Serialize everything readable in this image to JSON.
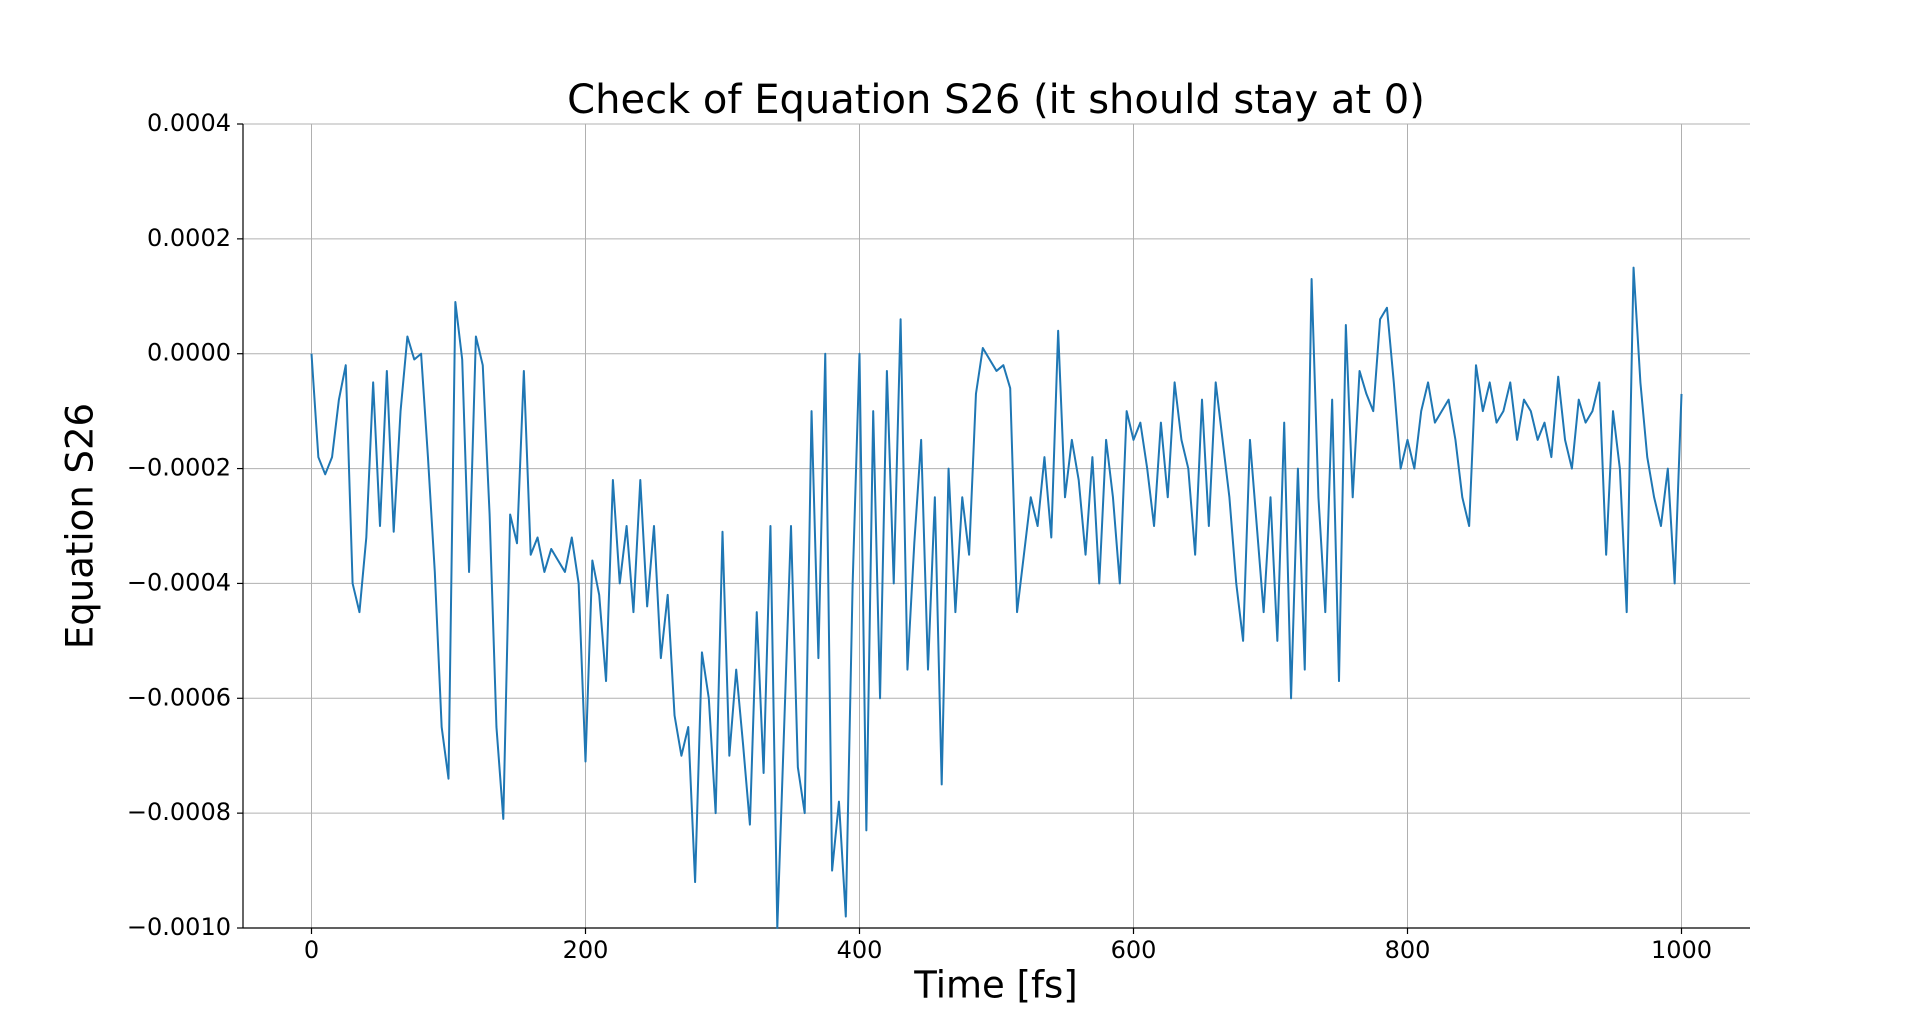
{
  "chart_data": {
    "type": "line",
    "title": "Check of Equation S26 (it should stay at 0)",
    "xlabel": "Time [fs]",
    "ylabel": "Equation S26",
    "color": "#1f77b4",
    "grid": true,
    "xlim": [
      -50,
      1050
    ],
    "ylim": [
      -0.001,
      0.0004
    ],
    "xticks": [
      0,
      200,
      400,
      600,
      800,
      1000
    ],
    "yticks": [
      {
        "value": -0.001,
        "label": "−0.0010"
      },
      {
        "value": -0.0008,
        "label": "−0.0008"
      },
      {
        "value": -0.0006,
        "label": "−0.0006"
      },
      {
        "value": -0.0004,
        "label": "−0.0004"
      },
      {
        "value": -0.0002,
        "label": "−0.0002"
      },
      {
        "value": 0,
        "label": "0.0000"
      },
      0.0002,
      0.0004
    ],
    "x": [
      0,
      5,
      10,
      15,
      20,
      25,
      30,
      35,
      40,
      45,
      50,
      55,
      60,
      65,
      70,
      75,
      80,
      85,
      90,
      95,
      100,
      105,
      110,
      115,
      120,
      125,
      130,
      135,
      140,
      145,
      150,
      155,
      160,
      165,
      170,
      175,
      180,
      185,
      190,
      195,
      200,
      205,
      210,
      215,
      220,
      225,
      230,
      235,
      240,
      245,
      250,
      255,
      260,
      265,
      270,
      275,
      280,
      285,
      290,
      295,
      300,
      305,
      310,
      315,
      320,
      325,
      330,
      335,
      340,
      345,
      350,
      355,
      360,
      365,
      370,
      375,
      380,
      385,
      390,
      395,
      400,
      405,
      410,
      415,
      420,
      425,
      430,
      435,
      440,
      445,
      450,
      455,
      460,
      465,
      470,
      475,
      480,
      485,
      490,
      495,
      500,
      505,
      510,
      515,
      520,
      525,
      530,
      535,
      540,
      545,
      550,
      555,
      560,
      565,
      570,
      575,
      580,
      585,
      590,
      595,
      600,
      605,
      610,
      615,
      620,
      625,
      630,
      635,
      640,
      645,
      650,
      655,
      660,
      665,
      670,
      675,
      680,
      685,
      690,
      695,
      700,
      705,
      710,
      715,
      720,
      725,
      730,
      735,
      740,
      745,
      750,
      755,
      760,
      765,
      770,
      775,
      780,
      785,
      790,
      795,
      800,
      805,
      810,
      815,
      820,
      825,
      830,
      835,
      840,
      845,
      850,
      855,
      860,
      865,
      870,
      875,
      880,
      885,
      890,
      895,
      900,
      905,
      910,
      915,
      920,
      925,
      930,
      935,
      940,
      945,
      950,
      955,
      960,
      965,
      970,
      975,
      980,
      985,
      990,
      995,
      1000
    ],
    "values": [
      0,
      -0.00018,
      -0.00021,
      -0.00018,
      -8e-05,
      -2e-05,
      -0.0004,
      -0.00045,
      -0.00032,
      -5e-05,
      -0.0003,
      -3e-05,
      -0.00031,
      -0.0001,
      3e-05,
      -1e-05,
      0,
      -0.00018,
      -0.00038,
      -0.00065,
      -0.00074,
      9e-05,
      -1e-05,
      -0.00038,
      3e-05,
      -2e-05,
      -0.00028,
      -0.00065,
      -0.00081,
      -0.00028,
      -0.00033,
      -3e-05,
      -0.00035,
      -0.00032,
      -0.00038,
      -0.00034,
      -0.00036,
      -0.00038,
      -0.00032,
      -0.0004,
      -0.00071,
      -0.00036,
      -0.00042,
      -0.00057,
      -0.00022,
      -0.0004,
      -0.0003,
      -0.00045,
      -0.00022,
      -0.00044,
      -0.0003,
      -0.00053,
      -0.00042,
      -0.00063,
      -0.0007,
      -0.00065,
      -0.00092,
      -0.00052,
      -0.0006,
      -0.0008,
      -0.00031,
      -0.0007,
      -0.00055,
      -0.00068,
      -0.00082,
      -0.00045,
      -0.00073,
      -0.0003,
      -0.001,
      -0.00065,
      -0.0003,
      -0.00072,
      -0.0008,
      -0.0001,
      -0.00053,
      0,
      -0.0009,
      -0.00078,
      -0.00098,
      -0.0004,
      0,
      -0.00083,
      -0.0001,
      -0.0006,
      -3e-05,
      -0.0004,
      6e-05,
      -0.00055,
      -0.00033,
      -0.00015,
      -0.00055,
      -0.00025,
      -0.00075,
      -0.0002,
      -0.00045,
      -0.00025,
      -0.00035,
      -7e-05,
      1e-05,
      -1e-05,
      -3e-05,
      -2e-05,
      -6e-05,
      -0.00045,
      -0.00035,
      -0.00025,
      -0.0003,
      -0.00018,
      -0.00032,
      4e-05,
      -0.00025,
      -0.00015,
      -0.00022,
      -0.00035,
      -0.00018,
      -0.0004,
      -0.00015,
      -0.00025,
      -0.0004,
      -0.0001,
      -0.00015,
      -0.00012,
      -0.0002,
      -0.0003,
      -0.00012,
      -0.00025,
      -5e-05,
      -0.00015,
      -0.0002,
      -0.00035,
      -8e-05,
      -0.0003,
      -5e-05,
      -0.00015,
      -0.00025,
      -0.0004,
      -0.0005,
      -0.00015,
      -0.0003,
      -0.00045,
      -0.00025,
      -0.0005,
      -0.00012,
      -0.0006,
      -0.0002,
      -0.00055,
      0.00013,
      -0.00025,
      -0.00045,
      -8e-05,
      -0.00057,
      5e-05,
      -0.00025,
      -3e-05,
      -7e-05,
      -0.0001,
      6e-05,
      8e-05,
      -5e-05,
      -0.0002,
      -0.00015,
      -0.0002,
      -0.0001,
      -5e-05,
      -0.00012,
      -0.0001,
      -8e-05,
      -0.00015,
      -0.00025,
      -0.0003,
      -2e-05,
      -0.0001,
      -5e-05,
      -0.00012,
      -0.0001,
      -5e-05,
      -0.00015,
      -8e-05,
      -0.0001,
      -0.00015,
      -0.00012,
      -0.00018,
      -4e-05,
      -0.00015,
      -0.0002,
      -8e-05,
      -0.00012,
      -0.0001,
      -5e-05,
      -0.00035,
      -0.0001,
      -0.0002,
      -0.00045,
      0.00015,
      -5e-05,
      -0.00018,
      -0.00025,
      -0.0003,
      -0.0002,
      -0.0004,
      -7e-05
    ]
  }
}
